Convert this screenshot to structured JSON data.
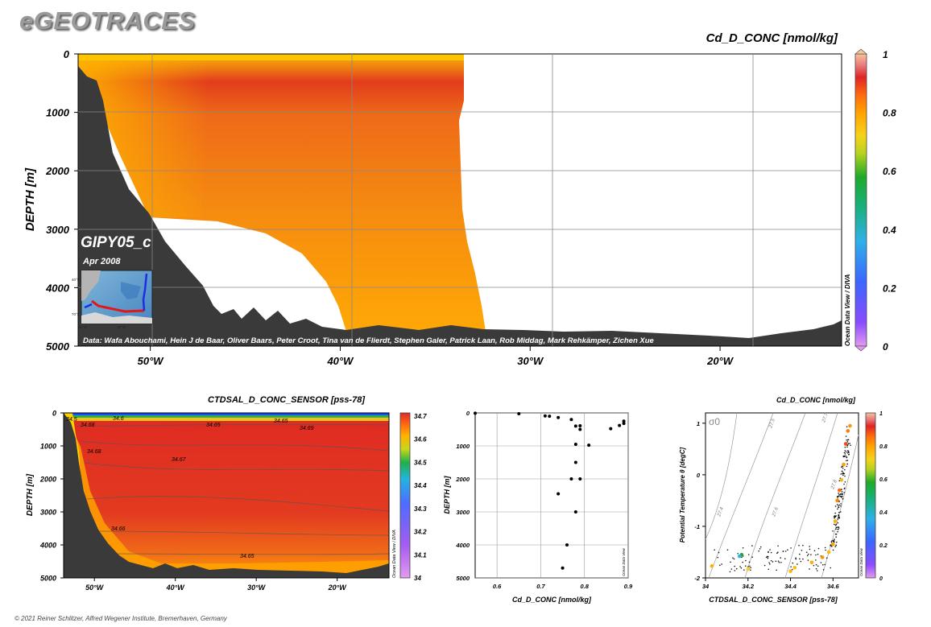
{
  "page": {
    "brand": "eGEOTRACES",
    "copyright": "© 2021 Reiner Schlitzer, Alfred Wegener Institute, Bremerhaven, Germany",
    "colors": {
      "seafloor": "#3a3a3a",
      "grid": "#9a9a9a",
      "text": "#000000"
    }
  },
  "chart_data": [
    {
      "type": "heatmap",
      "title": "Cd_D_CONC [nmol/kg]",
      "ylabel": "DEPTH [m]",
      "xlabel": "",
      "x_ticks": [
        "50°W",
        "40°W",
        "30°W",
        "20°W"
      ],
      "x_tick_values": [
        -50,
        -40,
        -30,
        -20
      ],
      "y_ticks": [
        "0",
        "1000",
        "2000",
        "3000",
        "4000",
        "5000"
      ],
      "y_tick_values": [
        0,
        1000,
        2000,
        3000,
        4000,
        5000
      ],
      "xlim": [
        -53.8,
        -13.6
      ],
      "ylim": [
        5000,
        0
      ],
      "colorbar": {
        "min": 0,
        "max": 1,
        "ticks": [
          "0",
          "0.2",
          "0.4",
          "0.6",
          "0.8",
          "1"
        ],
        "label": "Ocean Data View / DIVA"
      },
      "inset": {
        "cruise": "GIPY05_c",
        "date": "Apr 2008",
        "lat_labels": [
          "40°S",
          "70°S"
        ],
        "lon_labels": [
          "90°W",
          "30°W"
        ]
      },
      "credits": "Data: Wafa Abouchami, Hein J de Baar, Oliver Baars, Peter Croot, Tina van de Flierdt, Stephen Galer, Patrick Laan, Rob Middag, Mark Rehkämper, Zichen Xue",
      "field": {
        "surface": 0.65,
        "subsurface_max": 0.85,
        "deep": 0.72,
        "bottom": 0.68
      }
    },
    {
      "type": "heatmap",
      "title": "CTDSAL_D_CONC_SENSOR [pss-78]",
      "ylabel": "DEPTH [m]",
      "x_ticks": [
        "50°W",
        "40°W",
        "30°W",
        "20°W"
      ],
      "x_tick_values": [
        -50,
        -40,
        -30,
        -20
      ],
      "y_ticks": [
        "0",
        "1000",
        "2000",
        "3000",
        "4000",
        "5000"
      ],
      "y_tick_values": [
        0,
        1000,
        2000,
        3000,
        4000,
        5000
      ],
      "xlim": [
        -53.8,
        -13.6
      ],
      "ylim": [
        5000,
        0
      ],
      "colorbar": {
        "min": 34,
        "max": 34.7,
        "ticks": [
          "34",
          "34.1",
          "34.2",
          "34.3",
          "34.4",
          "34.5",
          "34.6",
          "34.7"
        ],
        "label": "Ocean Data View / DIVA"
      },
      "contour_labels": [
        "34.5",
        "34.6",
        "34.68",
        "34.65",
        "34.69",
        "34.68",
        "34.67",
        "34.66",
        "34.65"
      ]
    },
    {
      "type": "scatter",
      "xlabel": "Cd_D_CONC [nmol/kg]",
      "ylabel": "DEPTH [m]",
      "xlim": [
        0.55,
        0.9
      ],
      "ylim": [
        5000,
        0
      ],
      "x_ticks": [
        "0.6",
        "0.7",
        "0.8",
        "0.9"
      ],
      "x_tick_values": [
        0.6,
        0.7,
        0.8,
        0.9
      ],
      "y_ticks": [
        "0",
        "1000",
        "2000",
        "3000",
        "4000",
        "5000"
      ],
      "y_tick_values": [
        0,
        1000,
        2000,
        3000,
        4000,
        5000
      ],
      "watermark": "Ocean Data View",
      "points": [
        {
          "x": 0.55,
          "y": 10
        },
        {
          "x": 0.65,
          "y": 25
        },
        {
          "x": 0.71,
          "y": 90
        },
        {
          "x": 0.72,
          "y": 100
        },
        {
          "x": 0.74,
          "y": 140
        },
        {
          "x": 0.77,
          "y": 200
        },
        {
          "x": 0.78,
          "y": 400
        },
        {
          "x": 0.79,
          "y": 390
        },
        {
          "x": 0.79,
          "y": 500
        },
        {
          "x": 0.86,
          "y": 480
        },
        {
          "x": 0.88,
          "y": 380
        },
        {
          "x": 0.89,
          "y": 250
        },
        {
          "x": 0.89,
          "y": 320
        },
        {
          "x": 0.78,
          "y": 950
        },
        {
          "x": 0.81,
          "y": 980
        },
        {
          "x": 0.78,
          "y": 1500
        },
        {
          "x": 0.77,
          "y": 2000
        },
        {
          "x": 0.79,
          "y": 2000
        },
        {
          "x": 0.74,
          "y": 2450
        },
        {
          "x": 0.78,
          "y": 3000
        },
        {
          "x": 0.76,
          "y": 4000
        },
        {
          "x": 0.75,
          "y": 4700
        }
      ]
    },
    {
      "type": "scatter",
      "title": "Cd_D_CONC [nmol/kg]",
      "xlabel": "CTDSAL_D_CONC_SENSOR [pss-78]",
      "ylabel": "Potential Temperature θ [degC]",
      "xlim": [
        34,
        34.72
      ],
      "ylim": [
        -2,
        1.2
      ],
      "x_ticks": [
        "34",
        "34.2",
        "34.4",
        "34.6"
      ],
      "x_tick_values": [
        34,
        34.2,
        34.4,
        34.6
      ],
      "y_ticks": [
        "-2",
        "-1",
        "0",
        "1"
      ],
      "y_tick_values": [
        -2,
        -1,
        0,
        1
      ],
      "sigma_label": "σ0",
      "isopycnal_labels": [
        "27.4",
        "27.5",
        "27.6",
        "27.7",
        "27.8"
      ],
      "colorbar": {
        "min": 0,
        "max": 1,
        "ticks": [
          "0",
          "0.2",
          "0.4",
          "0.6",
          "0.8",
          "1"
        ],
        "label": "Ocean Data View"
      },
      "colored_points": [
        {
          "x": 34.67,
          "y": 0.85,
          "c": 0.82
        },
        {
          "x": 34.66,
          "y": 0.6,
          "c": 0.88
        },
        {
          "x": 34.65,
          "y": 0.2,
          "c": 0.75
        },
        {
          "x": 34.64,
          "y": -0.1,
          "c": 0.7
        },
        {
          "x": 34.62,
          "y": -0.5,
          "c": 0.8
        },
        {
          "x": 34.61,
          "y": -0.9,
          "c": 0.72
        },
        {
          "x": 34.6,
          "y": -1.35,
          "c": 0.74
        },
        {
          "x": 34.58,
          "y": -1.5,
          "c": 0.7
        },
        {
          "x": 34.55,
          "y": -1.6,
          "c": 0.78
        },
        {
          "x": 34.5,
          "y": -1.7,
          "c": 0.72
        },
        {
          "x": 34.42,
          "y": -1.8,
          "c": 0.69
        },
        {
          "x": 34.4,
          "y": -1.87,
          "c": 0.7
        },
        {
          "x": 34.2,
          "y": -1.83,
          "c": 0.65
        },
        {
          "x": 34.17,
          "y": -1.55,
          "c": 0.55
        },
        {
          "x": 34.16,
          "y": -1.58,
          "c": 0.4
        },
        {
          "x": 34.03,
          "y": -1.77,
          "c": 0.72
        },
        {
          "x": 34.68,
          "y": 0.95,
          "c": 0.77
        },
        {
          "x": 34.63,
          "y": -0.3,
          "c": 0.85
        }
      ]
    }
  ]
}
